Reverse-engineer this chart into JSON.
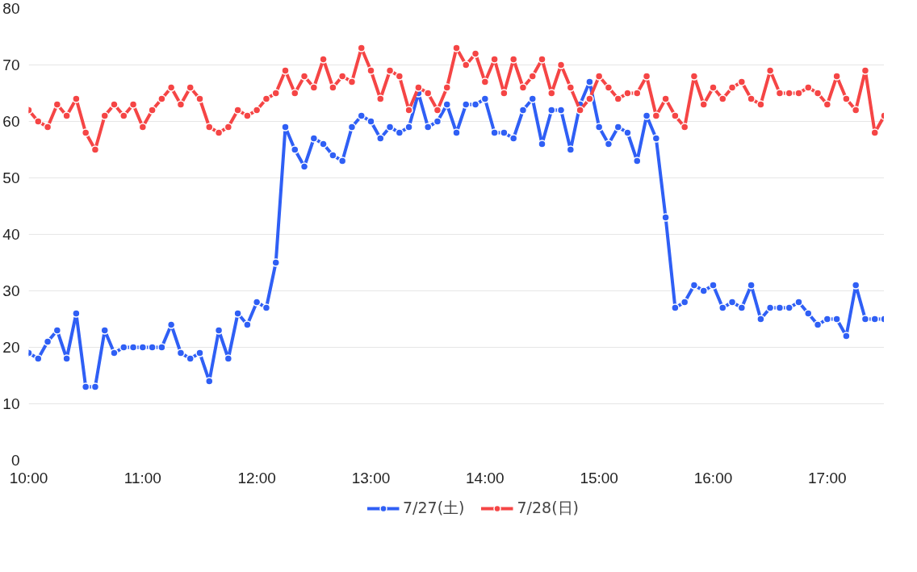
{
  "chart_data": {
    "type": "line",
    "x": [
      10,
      10.0833,
      10.1667,
      10.25,
      10.3333,
      10.4167,
      10.5,
      10.5833,
      10.6667,
      10.75,
      10.8333,
      10.9167,
      11,
      11.0833,
      11.1667,
      11.25,
      11.3333,
      11.4167,
      11.5,
      11.5833,
      11.6667,
      11.75,
      11.8333,
      11.9167,
      12,
      12.0833,
      12.1667,
      12.25,
      12.3333,
      12.4167,
      12.5,
      12.5833,
      12.6667,
      12.75,
      12.8333,
      12.9167,
      13,
      13.0833,
      13.1667,
      13.25,
      13.3333,
      13.4167,
      13.5,
      13.5833,
      13.6667,
      13.75,
      13.8333,
      13.9167,
      14,
      14.0833,
      14.1667,
      14.25,
      14.3333,
      14.4167,
      14.5,
      14.5833,
      14.6667,
      14.75,
      14.8333,
      14.9167,
      15,
      15.0833,
      15.1667,
      15.25,
      15.3333,
      15.4167,
      15.5,
      15.5833,
      15.6667,
      15.75,
      15.8333,
      15.9167,
      16,
      16.0833,
      16.1667,
      16.25,
      16.3333,
      16.4167,
      16.5,
      16.5833,
      16.6667,
      16.75,
      16.8333,
      16.9167,
      17,
      17.0833,
      17.1667,
      17.25,
      17.3333,
      17.4167,
      17.5
    ],
    "series": [
      {
        "name": "7/27(土)",
        "color": "#2f5ff5",
        "values": [
          19,
          18,
          21,
          23,
          18,
          26,
          13,
          13,
          23,
          19,
          20,
          20,
          20,
          20,
          20,
          24,
          19,
          18,
          19,
          14,
          23,
          18,
          26,
          24,
          28,
          27,
          35,
          59,
          55,
          52,
          57,
          56,
          54,
          53,
          59,
          61,
          60,
          57,
          59,
          58,
          59,
          65,
          59,
          60,
          63,
          58,
          63,
          63,
          64,
          58,
          58,
          57,
          62,
          64,
          56,
          62,
          62,
          55,
          63,
          67,
          59,
          56,
          59,
          58,
          53,
          61,
          57,
          43,
          27,
          28,
          31,
          30,
          31,
          27,
          28,
          27,
          31,
          25,
          27,
          27,
          27,
          28,
          26,
          24,
          25,
          25,
          22,
          31,
          25,
          25,
          25
        ]
      },
      {
        "name": "7/28(日)",
        "color": "#f54545",
        "values": [
          62,
          60,
          59,
          63,
          61,
          64,
          58,
          55,
          61,
          63,
          61,
          63,
          59,
          62,
          64,
          66,
          63,
          66,
          64,
          59,
          58,
          59,
          62,
          61,
          62,
          64,
          65,
          69,
          65,
          68,
          66,
          71,
          66,
          68,
          67,
          73,
          69,
          64,
          69,
          68,
          62,
          66,
          65,
          62,
          66,
          73,
          70,
          72,
          67,
          71,
          65,
          71,
          66,
          68,
          71,
          65,
          70,
          66,
          62,
          64,
          68,
          66,
          64,
          65,
          65,
          68,
          61,
          64,
          61,
          59,
          68,
          63,
          66,
          64,
          66,
          67,
          64,
          63,
          69,
          65,
          65,
          65,
          66,
          65,
          63,
          68,
          64,
          62,
          69,
          58,
          61
        ]
      }
    ],
    "xlim": [
      10,
      17.5
    ],
    "xticks": [
      {
        "value": 10,
        "label": "10:00"
      },
      {
        "value": 11,
        "label": "11:00"
      },
      {
        "value": 12,
        "label": "12:00"
      },
      {
        "value": 13,
        "label": "13:00"
      },
      {
        "value": 14,
        "label": "14:00"
      },
      {
        "value": 15,
        "label": "15:00"
      },
      {
        "value": 16,
        "label": "16:00"
      },
      {
        "value": 17,
        "label": "17:00"
      }
    ],
    "ylim": [
      0,
      80
    ],
    "yticks": [
      0,
      10,
      20,
      30,
      40,
      50,
      60,
      70,
      80
    ],
    "grid": "y",
    "legend": "bottom",
    "marker": "circle",
    "line_style": "solid"
  }
}
